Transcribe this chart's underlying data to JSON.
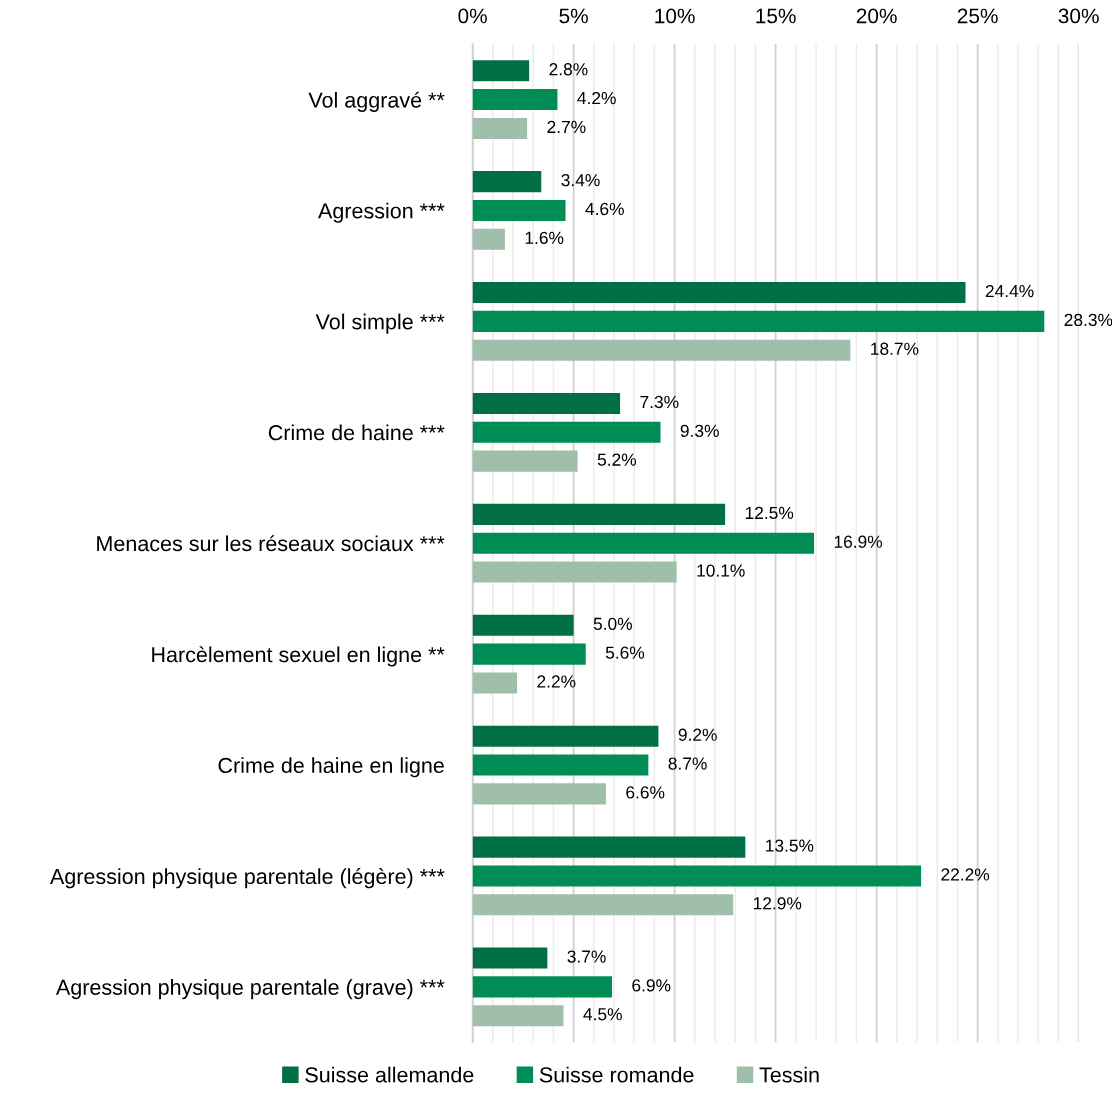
{
  "chart_data": {
    "type": "bar",
    "orientation": "horizontal",
    "categories": [
      "Vol aggravé **",
      "Agression ***",
      "Vol simple ***",
      "Crime de haine ***",
      "Menaces sur les réseaux sociaux ***",
      "Harcèlement sexuel en ligne **",
      "Crime de haine en ligne",
      "Agression physique parentale (légère) ***",
      "Agression physique parentale (grave) ***"
    ],
    "series": [
      {
        "name": "Suisse allemande",
        "color": "#006f44",
        "values": [
          2.8,
          3.4,
          24.4,
          7.3,
          12.5,
          5.0,
          9.2,
          13.5,
          3.7
        ],
        "value_labels": [
          "2.8%",
          "3.4%",
          "24.4%",
          "7.3%",
          "12.5%",
          "5.0%",
          "9.2%",
          "13.5%",
          "3.7%"
        ]
      },
      {
        "name": "Suisse romande",
        "color": "#008c55",
        "values": [
          4.2,
          4.6,
          28.3,
          9.3,
          16.9,
          5.6,
          8.7,
          22.2,
          6.9
        ],
        "value_labels": [
          "4.2%",
          "4.6%",
          "28.3%",
          "9.3%",
          "16.9%",
          "5.6%",
          "8.7%",
          "22.2%",
          "6.9%"
        ]
      },
      {
        "name": "Tessin",
        "color": "#a0bfab",
        "values": [
          2.7,
          1.6,
          18.7,
          5.2,
          10.1,
          2.2,
          6.6,
          12.9,
          4.5
        ],
        "value_labels": [
          "2.7%",
          "1.6%",
          "18.7%",
          "5.2%",
          "10.1%",
          "2.2%",
          "6.6%",
          "12.9%",
          "4.5%"
        ]
      }
    ],
    "xlim": [
      0,
      30
    ],
    "xticks": [
      {
        "value": 0,
        "label": "0%"
      },
      {
        "value": 5,
        "label": "5%"
      },
      {
        "value": 10,
        "label": "10%"
      },
      {
        "value": 15,
        "label": "15%"
      },
      {
        "value": 20,
        "label": "20%"
      },
      {
        "value": 25,
        "label": "25%"
      },
      {
        "value": 30,
        "label": "30%"
      }
    ],
    "grid": "x",
    "legend": "bottom"
  }
}
